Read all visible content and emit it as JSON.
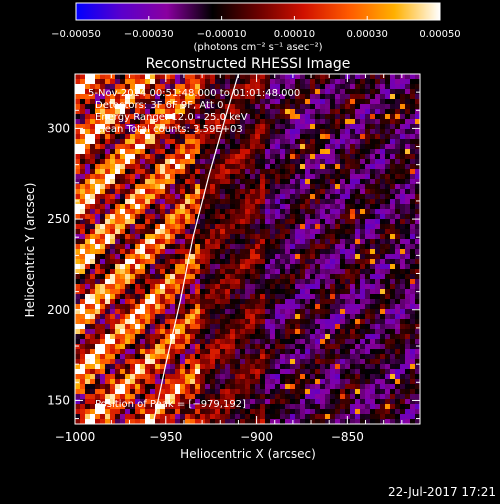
{
  "footer_date": "22-Jul-2017 17:21",
  "colorbar": {
    "tick_labels": [
      "−0.00050",
      "−0.00030",
      "−0.00010",
      "0.00010",
      "0.00030",
      "0.00050"
    ],
    "tick_values": [
      -0.0005,
      -0.0003,
      -0.0001,
      0.0001,
      0.0003,
      0.0005
    ],
    "range": [
      -0.0005,
      0.0005
    ],
    "units_label": "(photons cm⁻² s⁻¹ asec⁻²)",
    "colors": [
      "#0000ff",
      "#5a00cc",
      "#8a00a0",
      "#000000",
      "#6a0000",
      "#d01000",
      "#ff5a00",
      "#ffb000",
      "#ffffff"
    ]
  },
  "chart_data": {
    "type": "heatmap",
    "title": "Reconstructed RHESSI Image",
    "xlabel": "Heliocentric X (arcsec)",
    "ylabel": "Heliocentric Y (arcsec)",
    "xlim": [
      -1000,
      -810
    ],
    "ylim": [
      137,
      330
    ],
    "x_ticks": [
      -1000,
      -950,
      -900,
      -850
    ],
    "y_ticks": [
      150,
      200,
      250,
      300
    ],
    "x_tick_labels": [
      "−1000",
      "−950",
      "−900",
      "−850"
    ],
    "y_tick_labels": [
      "150",
      "200",
      "250",
      "300"
    ],
    "annotations": {
      "time_range": "5-Nov-2014 00:51:48.000 to 01:01:48.000",
      "detectors": "Detectors: 3F 6F 9F, Att 0",
      "energy": "Energy Range: 12.0 - 25.0 keV",
      "method": "Clean     Total counts: 3.59E+03",
      "peak": "Position of Peak = [−979,192]"
    },
    "limb_curve": [
      [
        -957,
        137
      ],
      [
        -950,
        170
      ],
      [
        -942,
        205
      ],
      [
        -935,
        240
      ],
      [
        -926,
        275
      ],
      [
        -916,
        310
      ],
      [
        -910,
        330
      ]
    ]
  }
}
